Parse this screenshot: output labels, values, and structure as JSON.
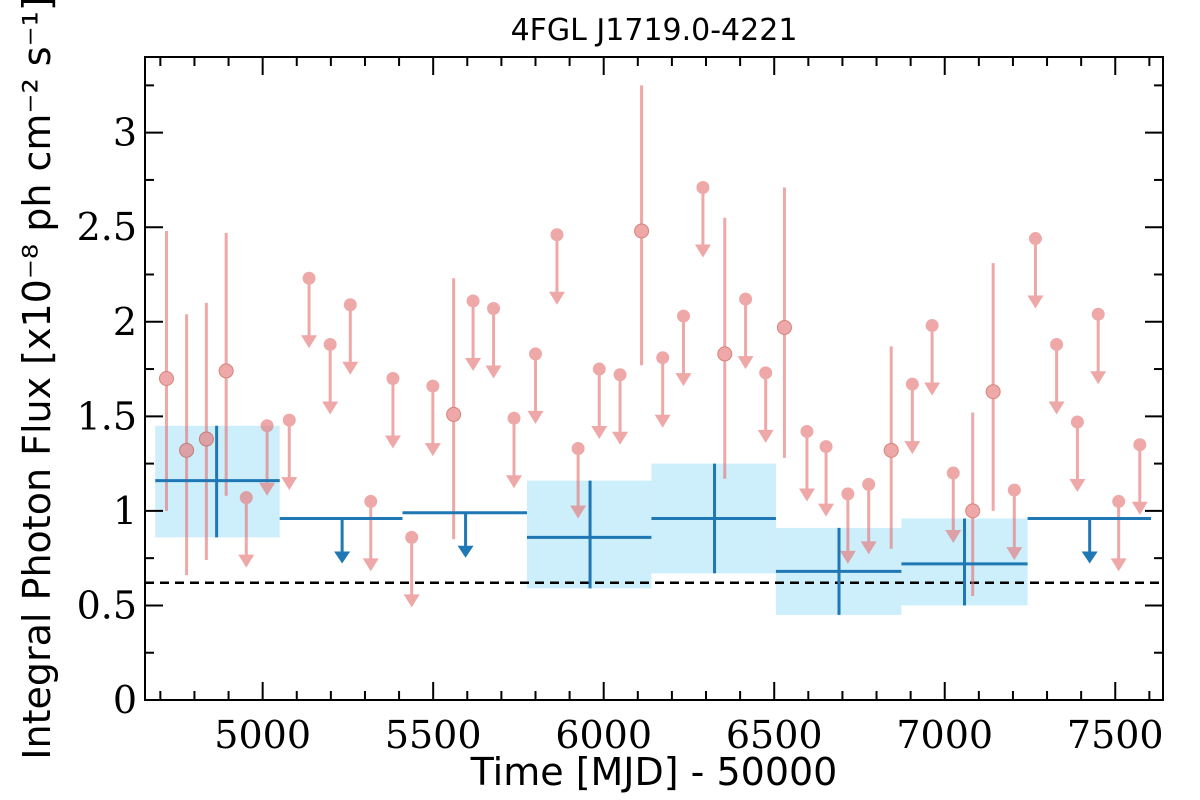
{
  "chart_data": {
    "type": "scatter",
    "title": "4FGL J1719.0-4221",
    "xlabel": "Time [MJD] - 50000",
    "ylabel": "Integral Photon Flux [x10⁻⁸ ph cm⁻² s⁻¹]",
    "xlim": [
      4655,
      7640
    ],
    "ylim": [
      0,
      3.4
    ],
    "x_ticks": [
      5000,
      5500,
      6000,
      6500,
      7000,
      7500
    ],
    "y_ticks": [
      {
        "value": 0,
        "label": "0"
      },
      {
        "value": 0.5,
        "label": "0.5"
      },
      {
        "value": 1,
        "label": "1"
      },
      {
        "value": 1.5,
        "label": "1.5"
      },
      {
        "value": 2,
        "label": "2"
      },
      {
        "value": 2.5,
        "label": "2.5"
      },
      {
        "value": 3,
        "label": "3"
      }
    ],
    "reference_line": {
      "y": 0.62,
      "style": "dashed",
      "color": "#000000"
    },
    "colors": {
      "fine": "#e57373",
      "coarse": "#1f77b4",
      "band": "#cdeefb"
    },
    "series": [
      {
        "style": "fine bins",
        "detections": [
          {
            "x": 4718,
            "y": 1.7,
            "lo": 1.0,
            "hi": 2.48
          },
          {
            "x": 4777,
            "y": 1.32,
            "lo": 0.66,
            "hi": 2.04
          },
          {
            "x": 4835,
            "y": 1.38,
            "lo": 0.74,
            "hi": 2.1
          },
          {
            "x": 4893,
            "y": 1.74,
            "lo": 1.08,
            "hi": 2.47
          },
          {
            "x": 5560,
            "y": 1.51,
            "lo": 0.85,
            "hi": 2.23
          },
          {
            "x": 6111,
            "y": 2.48,
            "lo": 1.77,
            "hi": 3.25
          },
          {
            "x": 6355,
            "y": 1.83,
            "lo": 1.17,
            "hi": 2.55
          },
          {
            "x": 6530,
            "y": 1.97,
            "lo": 1.28,
            "hi": 2.71
          },
          {
            "x": 6843,
            "y": 1.32,
            "lo": 0.8,
            "hi": 1.87
          },
          {
            "x": 7082,
            "y": 1.0,
            "lo": 0.55,
            "hi": 1.52
          },
          {
            "x": 7142,
            "y": 1.63,
            "lo": 1.0,
            "hi": 2.31
          }
        ],
        "upper_limits": [
          {
            "x": 4952,
            "y": 1.07
          },
          {
            "x": 5013,
            "y": 1.45
          },
          {
            "x": 5078,
            "y": 1.48
          },
          {
            "x": 5136,
            "y": 2.23
          },
          {
            "x": 5198,
            "y": 1.88
          },
          {
            "x": 5257,
            "y": 2.09
          },
          {
            "x": 5317,
            "y": 1.05
          },
          {
            "x": 5382,
            "y": 1.7
          },
          {
            "x": 5437,
            "y": 0.86
          },
          {
            "x": 5499,
            "y": 1.66
          },
          {
            "x": 5617,
            "y": 2.11
          },
          {
            "x": 5677,
            "y": 2.07
          },
          {
            "x": 5737,
            "y": 1.49
          },
          {
            "x": 5800,
            "y": 1.83
          },
          {
            "x": 5863,
            "y": 2.46
          },
          {
            "x": 5925,
            "y": 1.33
          },
          {
            "x": 5987,
            "y": 1.75
          },
          {
            "x": 6048,
            "y": 1.72
          },
          {
            "x": 6173,
            "y": 1.81
          },
          {
            "x": 6234,
            "y": 2.03
          },
          {
            "x": 6291,
            "y": 2.71
          },
          {
            "x": 6416,
            "y": 2.12
          },
          {
            "x": 6475,
            "y": 1.73
          },
          {
            "x": 6596,
            "y": 1.42
          },
          {
            "x": 6652,
            "y": 1.34
          },
          {
            "x": 6716,
            "y": 1.09
          },
          {
            "x": 6777,
            "y": 1.14
          },
          {
            "x": 6905,
            "y": 1.67
          },
          {
            "x": 6963,
            "y": 1.98
          },
          {
            "x": 7025,
            "y": 1.2
          },
          {
            "x": 7204,
            "y": 1.11
          },
          {
            "x": 7266,
            "y": 2.44
          },
          {
            "x": 7328,
            "y": 1.88
          },
          {
            "x": 7389,
            "y": 1.47
          },
          {
            "x": 7450,
            "y": 2.04
          },
          {
            "x": 7510,
            "y": 1.05
          },
          {
            "x": 7572,
            "y": 1.35
          }
        ]
      },
      {
        "style": "coarse bins",
        "detections": [
          {
            "x": 4865,
            "x0": 4685,
            "x1": 5050,
            "y": 1.16,
            "lo": 0.86,
            "hi": 1.45
          },
          {
            "x": 5960,
            "x0": 5775,
            "x1": 6140,
            "y": 0.86,
            "lo": 0.59,
            "hi": 1.16
          },
          {
            "x": 6325,
            "x0": 6140,
            "x1": 6505,
            "y": 0.96,
            "lo": 0.67,
            "hi": 1.25
          },
          {
            "x": 6690,
            "x0": 6505,
            "x1": 6873,
            "y": 0.68,
            "lo": 0.45,
            "hi": 0.91
          },
          {
            "x": 7058,
            "x0": 6873,
            "x1": 7243,
            "y": 0.72,
            "lo": 0.5,
            "hi": 0.96
          }
        ],
        "upper_limits": [
          {
            "x": 5233,
            "x0": 5050,
            "x1": 5410,
            "y": 0.96
          },
          {
            "x": 5595,
            "x0": 5410,
            "x1": 5775,
            "y": 0.99
          },
          {
            "x": 7425,
            "x0": 7243,
            "x1": 7605,
            "y": 0.96
          }
        ]
      }
    ]
  }
}
